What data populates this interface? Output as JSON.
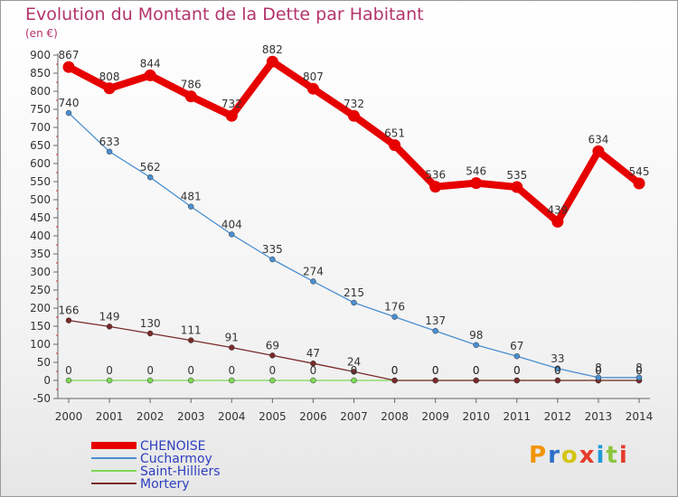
{
  "page": {
    "title": "Evolution du Montant de la Dette par Habitant",
    "unit": "(en €)"
  },
  "logo": {
    "text": "Proxiti",
    "colors": [
      "#f29400",
      "#2b6fc7",
      "#d4c414",
      "#e53b2c",
      "#1e9bd7",
      "#8cc63f",
      "#e53b2c"
    ]
  },
  "chart_data": {
    "type": "line",
    "title": "Evolution du Montant de la Dette par Habitant",
    "ylabel": "(en €)",
    "x": [
      2000,
      2001,
      2002,
      2003,
      2004,
      2005,
      2006,
      2007,
      2008,
      2009,
      2010,
      2011,
      2012,
      2013,
      2014
    ],
    "ylim": [
      -50,
      900
    ],
    "yticks": [
      -50,
      0,
      50,
      100,
      150,
      200,
      250,
      300,
      350,
      400,
      450,
      500,
      550,
      600,
      650,
      700,
      750,
      800,
      850,
      900
    ],
    "grid": false,
    "legend_position": "bottom-left",
    "series": [
      {
        "name": "CHENOISE",
        "color": "#e60000",
        "values": [
          867,
          808,
          844,
          786,
          732,
          882,
          807,
          732,
          651,
          536,
          546,
          535,
          439,
          634,
          545
        ]
      },
      {
        "name": "Cucharmoy",
        "color": "#4a8fd0",
        "values": [
          740,
          633,
          562,
          481,
          404,
          335,
          274,
          215,
          176,
          137,
          98,
          67,
          33,
          8,
          8
        ]
      },
      {
        "name": "Saint-Hilliers",
        "color": "#7ed957",
        "values": [
          0,
          0,
          0,
          0,
          0,
          0,
          0,
          0,
          0,
          0,
          0,
          0,
          0,
          0,
          0
        ]
      },
      {
        "name": "Mortery",
        "color": "#7a2a2a",
        "values": [
          166,
          149,
          130,
          111,
          91,
          69,
          47,
          24,
          0,
          0,
          0,
          0,
          0,
          0,
          0
        ]
      }
    ]
  }
}
